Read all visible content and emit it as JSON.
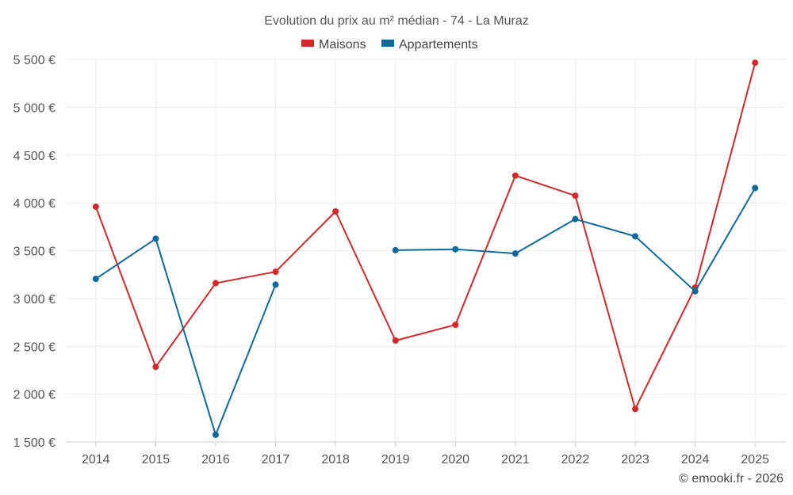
{
  "chart_data": {
    "type": "line",
    "title": "Evolution du prix au m² médian - 74 - La Muraz",
    "categories": [
      "2014",
      "2015",
      "2016",
      "2017",
      "2018",
      "2019",
      "2020",
      "2021",
      "2022",
      "2023",
      "2024",
      "2025"
    ],
    "series": [
      {
        "name": "Maisons",
        "color": "#d62728",
        "values": [
          3960,
          2285,
          3160,
          3280,
          3910,
          2560,
          2725,
          4285,
          4075,
          1845,
          3115,
          5465
        ]
      },
      {
        "name": "Appartements",
        "color": "#0d6a9d",
        "values": [
          3205,
          3625,
          1575,
          3145,
          null,
          3505,
          3515,
          3470,
          3830,
          3650,
          3075,
          4155
        ]
      }
    ],
    "ylim": [
      1500,
      5500
    ],
    "yticks": [
      1500,
      2000,
      2500,
      3000,
      3500,
      4000,
      4500,
      5000,
      5500
    ],
    "ytick_labels": [
      "1 500 €",
      "2 000 €",
      "2 500 €",
      "3 000 €",
      "3 500 €",
      "4 000 €",
      "4 500 €",
      "5 000 €",
      "5 500 €"
    ],
    "xlabel": "",
    "ylabel": "",
    "grid": true,
    "legend_position": "top-center"
  },
  "credit": "© emooki.fr - 2026"
}
